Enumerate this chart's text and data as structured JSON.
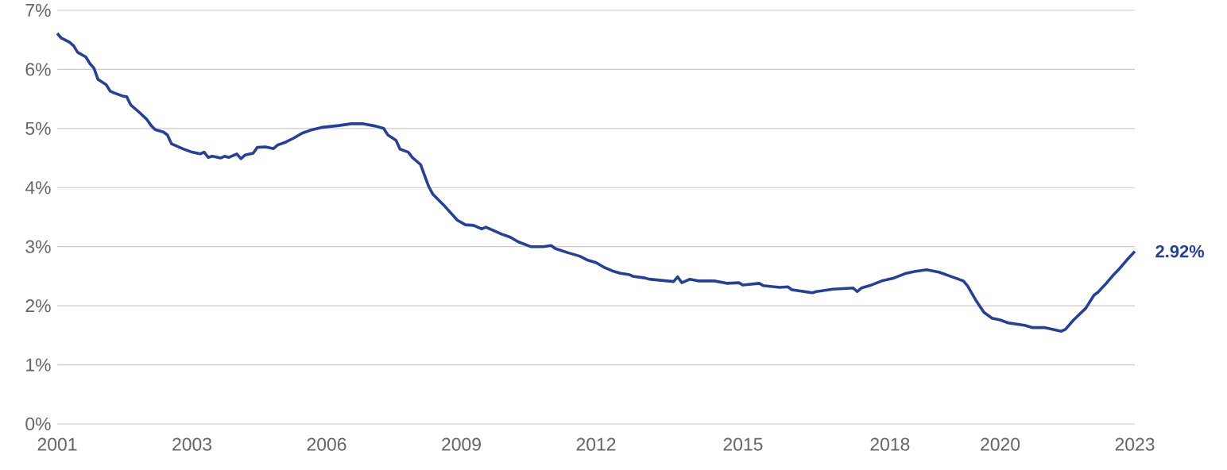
{
  "chart_data": {
    "type": "line",
    "xlim": [
      "2001-01",
      "2023-01"
    ],
    "ylim": [
      0,
      7
    ],
    "xticks": [
      {
        "value": "2001-01",
        "label": "2001"
      },
      {
        "value": "2003-10",
        "label": "2003"
      },
      {
        "value": "2006-07",
        "label": "2006"
      },
      {
        "value": "2009-04",
        "label": "2009"
      },
      {
        "value": "2012-01",
        "label": "2012"
      },
      {
        "value": "2015-01",
        "label": "2015"
      },
      {
        "value": "2018-01",
        "label": "2018"
      },
      {
        "value": "2020-04",
        "label": "2020"
      },
      {
        "value": "2023-01",
        "label": "2023"
      }
    ],
    "yticks": [
      {
        "value": 0,
        "label": "0%"
      },
      {
        "value": 1,
        "label": "1%"
      },
      {
        "value": 2,
        "label": "2%"
      },
      {
        "value": 3,
        "label": "3%"
      },
      {
        "value": 4,
        "label": "4%"
      },
      {
        "value": 5,
        "label": "5%"
      },
      {
        "value": 6,
        "label": "6%"
      },
      {
        "value": 7,
        "label": "7%"
      }
    ],
    "grid": "y",
    "marker": "none",
    "line_style": "solid",
    "annotations": [
      {
        "text": "2.92%",
        "x": "2023-01",
        "y": 2.92
      }
    ],
    "series": [
      {
        "color": "#24409a",
        "x": [
          "2001-01",
          "2001-02",
          "2001-04",
          "2001-05",
          "2001-06",
          "2001-08",
          "2001-09",
          "2001-10",
          "2001-11",
          "2002-01",
          "2002-02",
          "2002-03",
          "2002-05",
          "2002-06",
          "2002-07",
          "2002-09",
          "2002-11",
          "2002-12",
          "2003-01",
          "2003-03",
          "2003-04",
          "2003-05",
          "2003-07",
          "2003-08",
          "2003-10",
          "2003-12",
          "2004-01",
          "2004-02",
          "2004-03",
          "2004-05",
          "2004-06",
          "2004-07",
          "2004-09",
          "2004-10",
          "2004-11",
          "2005-01",
          "2005-02",
          "2005-04",
          "2005-06",
          "2005-07",
          "2005-09",
          "2005-11",
          "2006-01",
          "2006-03",
          "2006-06",
          "2006-10",
          "2007-01",
          "2007-04",
          "2007-07",
          "2007-09",
          "2007-10",
          "2007-12",
          "2008-01",
          "2008-03",
          "2008-04",
          "2008-06",
          "2008-08",
          "2008-09",
          "2008-12",
          "2009-03",
          "2009-05",
          "2009-07",
          "2009-09",
          "2009-10",
          "2010-01",
          "2010-02",
          "2010-04",
          "2010-06",
          "2010-09",
          "2010-12",
          "2011-02",
          "2011-03",
          "2011-06",
          "2011-09",
          "2011-11",
          "2012-01",
          "2012-03",
          "2012-05",
          "2012-07",
          "2012-09",
          "2012-10",
          "2013-01",
          "2013-02",
          "2013-08",
          "2013-09",
          "2013-10",
          "2013-12",
          "2014-02",
          "2014-06",
          "2014-09",
          "2014-12",
          "2015-01",
          "2015-05",
          "2015-06",
          "2015-10",
          "2015-12",
          "2016-01",
          "2016-06",
          "2016-07",
          "2016-11",
          "2017-04",
          "2017-05",
          "2017-06",
          "2017-08",
          "2017-11",
          "2018-02",
          "2018-05",
          "2018-07",
          "2018-10",
          "2019-01",
          "2019-05",
          "2019-07",
          "2019-08",
          "2019-10",
          "2019-12",
          "2020-02",
          "2020-04",
          "2020-06",
          "2020-10",
          "2020-12",
          "2021-03",
          "2021-07",
          "2021-08",
          "2021-10",
          "2022-01",
          "2022-03",
          "2022-04",
          "2022-06",
          "2022-08",
          "2022-09",
          "2022-11",
          "2023-01"
        ],
        "values": [
          6.61,
          6.53,
          6.46,
          6.4,
          6.29,
          6.21,
          6.1,
          6.02,
          5.83,
          5.74,
          5.63,
          5.6,
          5.55,
          5.54,
          5.4,
          5.28,
          5.15,
          5.05,
          4.98,
          4.94,
          4.89,
          4.74,
          4.68,
          4.65,
          4.6,
          4.57,
          4.6,
          4.51,
          4.53,
          4.5,
          4.53,
          4.51,
          4.57,
          4.49,
          4.55,
          4.58,
          4.68,
          4.69,
          4.66,
          4.72,
          4.77,
          4.84,
          4.92,
          4.97,
          5.02,
          5.05,
          5.08,
          5.08,
          5.04,
          5.0,
          4.89,
          4.8,
          4.65,
          4.6,
          4.51,
          4.39,
          4.02,
          3.89,
          3.68,
          3.45,
          3.37,
          3.36,
          3.3,
          3.33,
          3.24,
          3.21,
          3.16,
          3.08,
          3.0,
          3.0,
          3.02,
          2.97,
          2.9,
          2.84,
          2.77,
          2.73,
          2.65,
          2.59,
          2.55,
          2.53,
          2.5,
          2.47,
          2.45,
          2.41,
          2.49,
          2.39,
          2.45,
          2.42,
          2.42,
          2.38,
          2.39,
          2.35,
          2.38,
          2.34,
          2.31,
          2.32,
          2.27,
          2.22,
          2.24,
          2.28,
          2.3,
          2.24,
          2.3,
          2.34,
          2.42,
          2.47,
          2.55,
          2.58,
          2.61,
          2.57,
          2.47,
          2.42,
          2.34,
          2.1,
          1.89,
          1.79,
          1.76,
          1.71,
          1.67,
          1.63,
          1.63,
          1.57,
          1.6,
          1.76,
          1.96,
          2.18,
          2.23,
          2.38,
          2.54,
          2.61,
          2.77,
          2.92
        ]
      }
    ]
  }
}
